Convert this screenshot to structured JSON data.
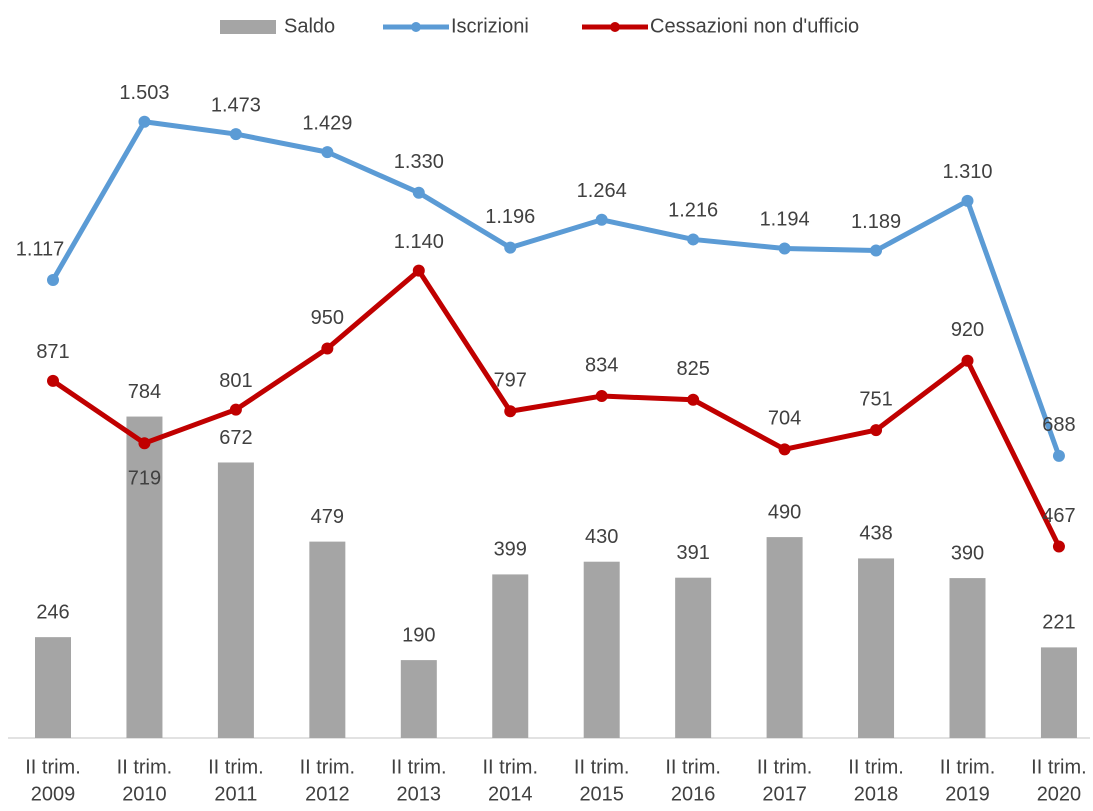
{
  "chart_data": {
    "type": "bar-line",
    "categories": [
      [
        "II trim.",
        "2009"
      ],
      [
        "II trim.",
        "2010"
      ],
      [
        "II trim.",
        "2011"
      ],
      [
        "II trim.",
        "2012"
      ],
      [
        "II trim.",
        "2013"
      ],
      [
        "II trim.",
        "2014"
      ],
      [
        "II trim.",
        "2015"
      ],
      [
        "II trim.",
        "2016"
      ],
      [
        "II trim.",
        "2017"
      ],
      [
        "II trim.",
        "2018"
      ],
      [
        "II trim.",
        "2019"
      ],
      [
        "II trim.",
        "2020"
      ]
    ],
    "ylim": [
      0,
      1800
    ],
    "legend": "top",
    "series": [
      {
        "name": "Saldo",
        "type": "bar",
        "color": "#a5a5a5",
        "values": [
          246,
          784,
          672,
          479,
          190,
          399,
          430,
          391,
          490,
          438,
          390,
          221
        ]
      },
      {
        "name": "Iscrizioni",
        "type": "line",
        "color": "#5b9bd5",
        "values": [
          1117,
          1503,
          1473,
          1429,
          1330,
          1196,
          1264,
          1216,
          1194,
          1189,
          1310,
          688
        ],
        "value_labels": [
          "1.117",
          "1.503",
          "1.473",
          "1.429",
          "1.330",
          "1.196",
          "1.264",
          "1.216",
          "1.194",
          "1.189",
          "1.310",
          "688"
        ]
      },
      {
        "name": "Cessazioni non d'ufficio",
        "type": "line",
        "color": "#c00000",
        "values": [
          871,
          719,
          801,
          950,
          1140,
          797,
          834,
          825,
          704,
          751,
          920,
          467
        ],
        "value_labels": [
          "871",
          "719",
          "801",
          "950",
          "1.140",
          "797",
          "834",
          "825",
          "704",
          "751",
          "920",
          "467"
        ]
      }
    ]
  }
}
